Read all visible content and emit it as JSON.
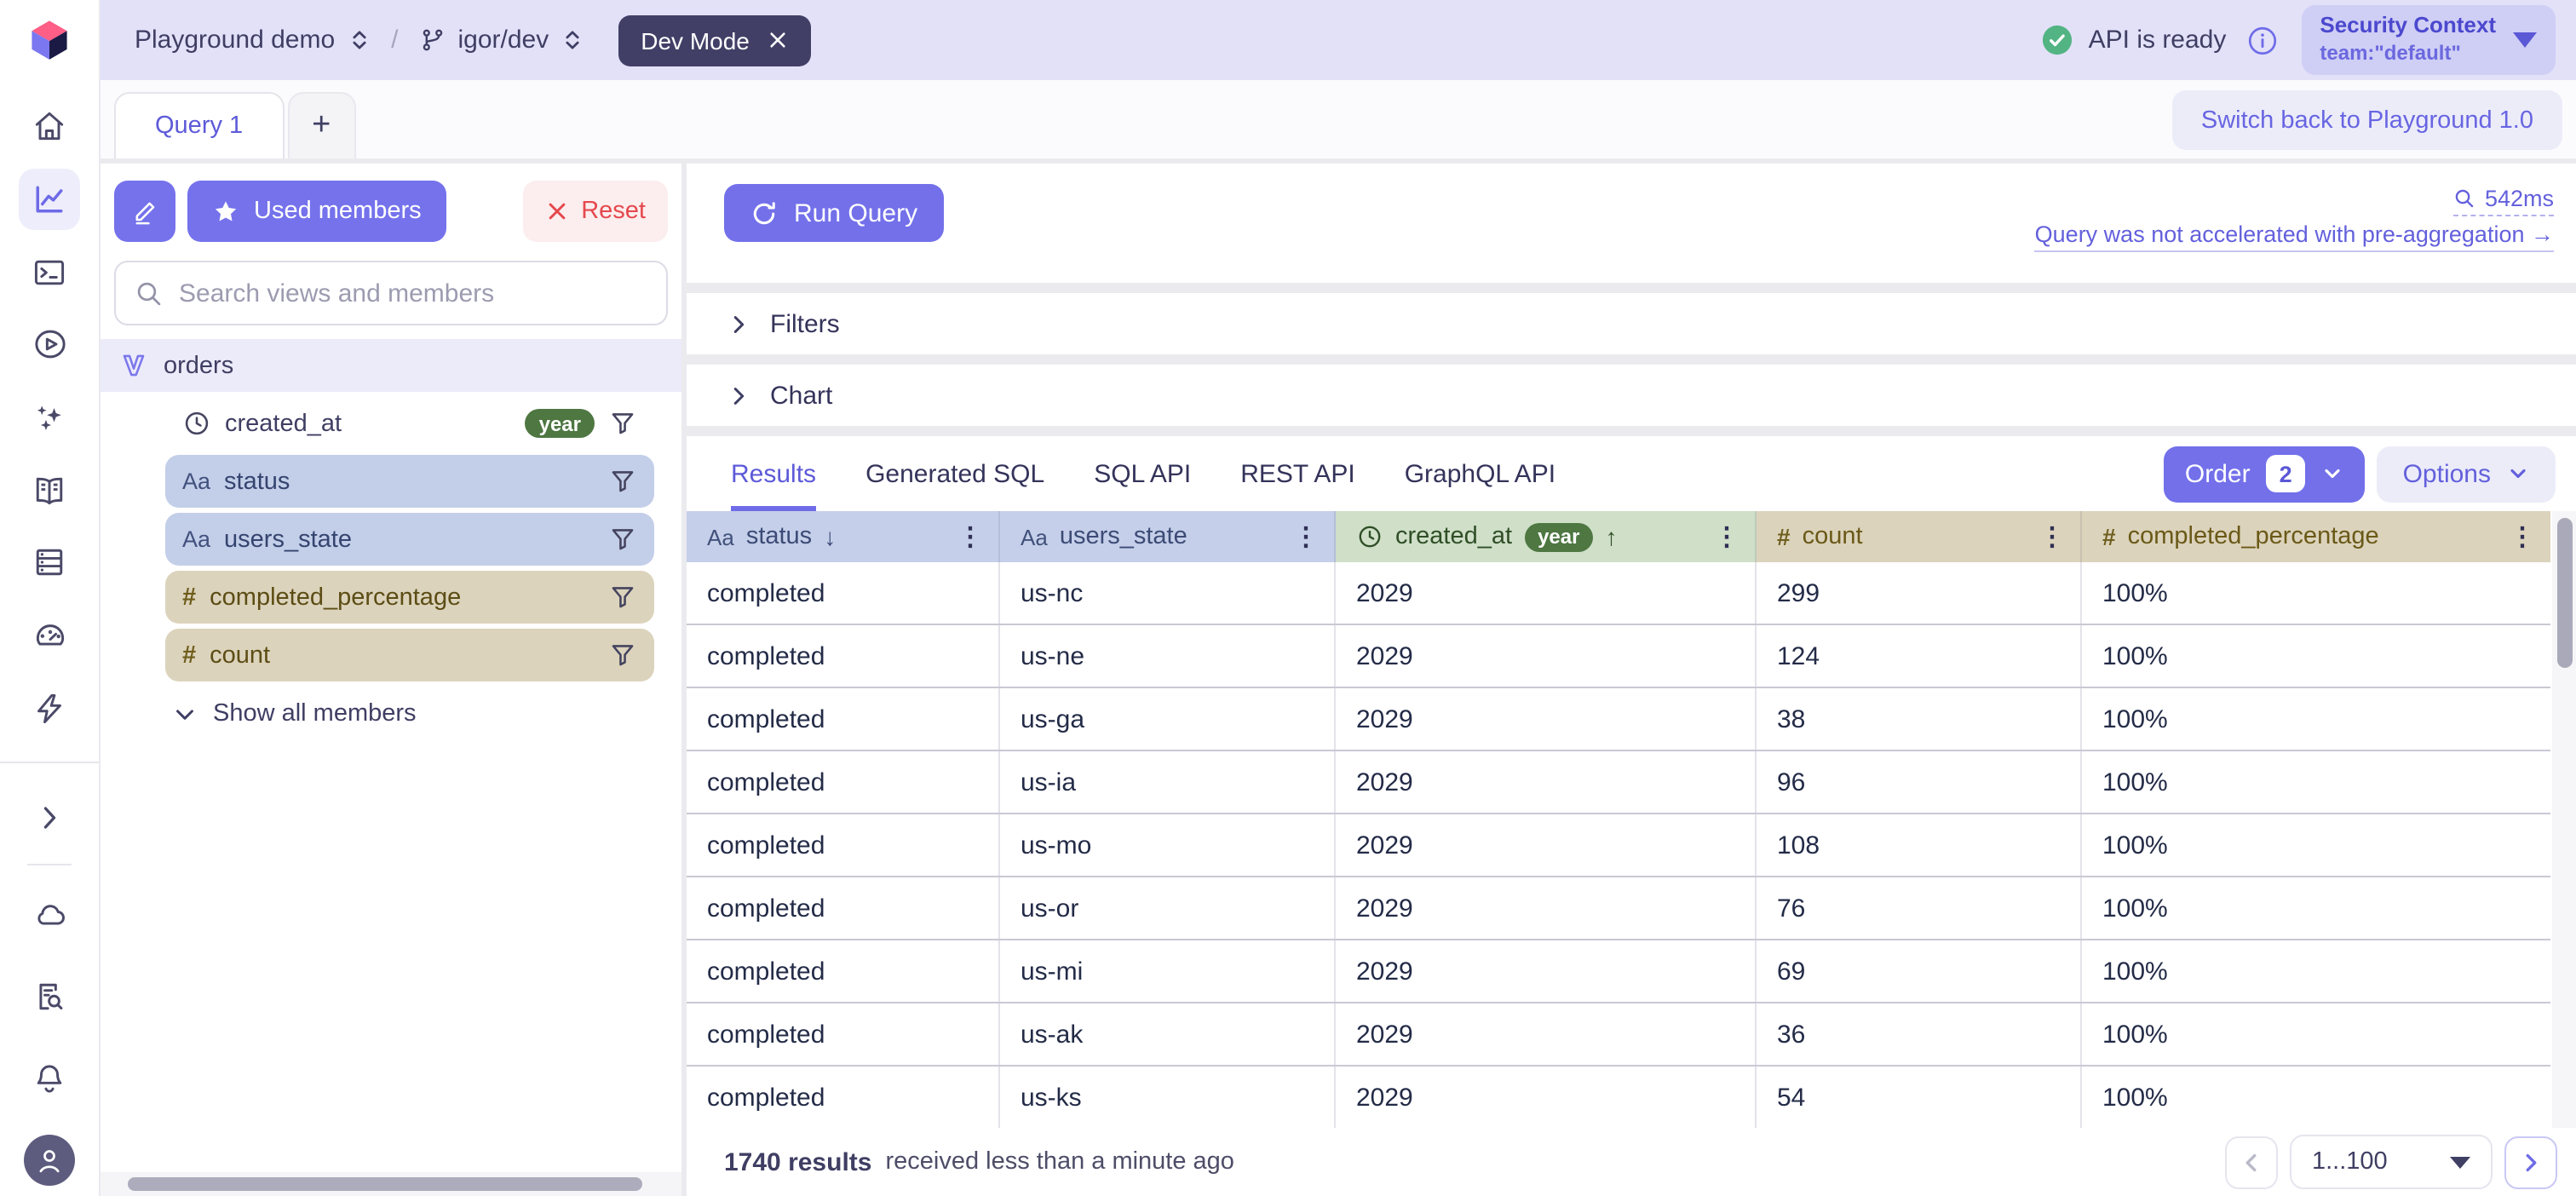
{
  "topbar": {
    "project": "Playground demo",
    "path_separator": "/",
    "branch": "igor/dev",
    "dev_mode_badge": "Dev Mode",
    "api_status": "API is ready",
    "security_context": {
      "title": "Security Context",
      "subtitle": "team:\"default\""
    }
  },
  "rail_icons": [
    "home",
    "charts",
    "console",
    "play",
    "ai-assistant",
    "docs",
    "data-model",
    "performance",
    "rollups",
    "expand",
    "cloud",
    "query-inspector",
    "notifications",
    "account"
  ],
  "query_tabs": {
    "tabs": [
      "Query 1"
    ],
    "add_label": "+"
  },
  "switch_button_label": "Switch back to Playground 1.0",
  "members_panel": {
    "used_members_label": "Used members",
    "reset_label": "Reset",
    "search_placeholder": "Search views and members",
    "cube": "orders",
    "members": [
      {
        "name": "created_at",
        "kind": "time",
        "granularity": "year"
      },
      {
        "name": "status",
        "kind": "dimension",
        "prefix": "Aa"
      },
      {
        "name": "users_state",
        "kind": "dimension",
        "prefix": "Aa"
      },
      {
        "name": "completed_percentage",
        "kind": "measure",
        "prefix": "#"
      },
      {
        "name": "count",
        "kind": "measure",
        "prefix": "#"
      }
    ],
    "show_all_label": "Show all members"
  },
  "query_bar": {
    "run_label": "Run Query",
    "duration": "542ms",
    "preagg_note": "Query was not accelerated with pre-aggregation →"
  },
  "sections": {
    "filters_label": "Filters",
    "chart_label": "Chart"
  },
  "results": {
    "tabs": [
      "Results",
      "Generated SQL",
      "SQL API",
      "REST API",
      "GraphQL API"
    ],
    "active_tab": "Results",
    "order_label": "Order",
    "order_count": "2",
    "options_label": "Options",
    "table": {
      "columns": [
        {
          "prefix": "Aa",
          "label": "status",
          "sort": "desc",
          "sort_indicator": "↓",
          "kind": "dimension"
        },
        {
          "prefix": "Aa",
          "label": "users_state",
          "kind": "dimension"
        },
        {
          "label": "created_at",
          "granularity": "year",
          "sort": "asc",
          "sort_indicator": "↑",
          "kind": "time"
        },
        {
          "prefix": "#",
          "label": "count",
          "kind": "measure"
        },
        {
          "prefix": "#",
          "label": "completed_percentage",
          "kind": "measure"
        }
      ],
      "rows": [
        [
          "completed",
          "us-nc",
          "2029",
          "299",
          "100%"
        ],
        [
          "completed",
          "us-ne",
          "2029",
          "124",
          "100%"
        ],
        [
          "completed",
          "us-ga",
          "2029",
          "38",
          "100%"
        ],
        [
          "completed",
          "us-ia",
          "2029",
          "96",
          "100%"
        ],
        [
          "completed",
          "us-mo",
          "2029",
          "108",
          "100%"
        ],
        [
          "completed",
          "us-or",
          "2029",
          "76",
          "100%"
        ],
        [
          "completed",
          "us-mi",
          "2029",
          "69",
          "100%"
        ],
        [
          "completed",
          "us-ak",
          "2029",
          "36",
          "100%"
        ],
        [
          "completed",
          "us-ks",
          "2029",
          "54",
          "100%"
        ]
      ]
    },
    "footer": {
      "count": "1740 results",
      "received": "received less than a minute ago",
      "page_range": "1...100"
    }
  },
  "colors": {
    "accent_purple": "#7370EA",
    "dimension_blue": "#C5CFE9",
    "time_green": "#CFDFC8",
    "measure_tan": "#DCD3BC",
    "year_badge_green": "#4E7742",
    "danger_red": "#E5484D",
    "topbar_lavender": "#E2E1F8"
  }
}
